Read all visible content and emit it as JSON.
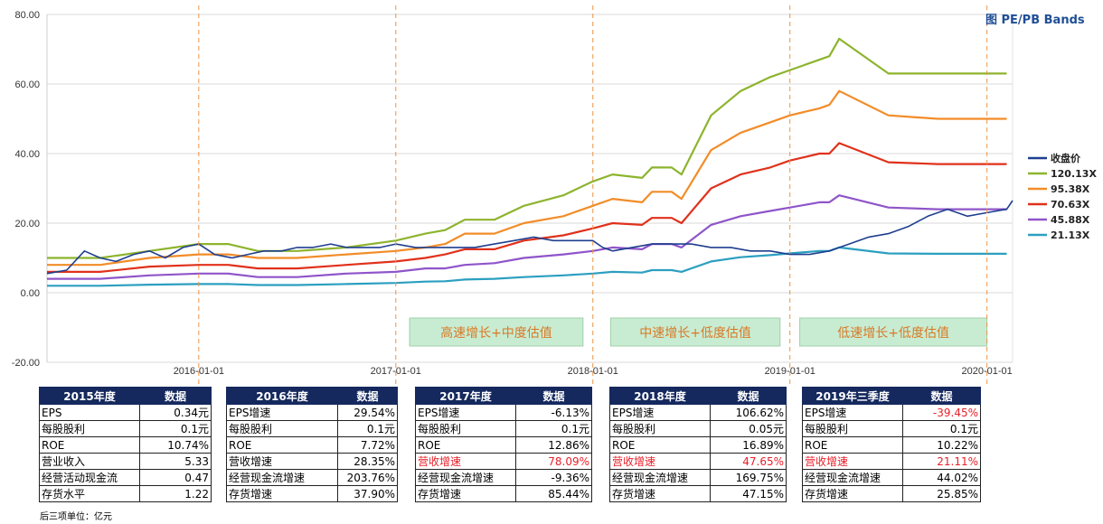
{
  "chart_data": {
    "type": "line",
    "title": "图 PE/PB Bands",
    "xlabel": "",
    "ylabel": "",
    "ylim": [
      -20,
      80
    ],
    "yticks": [
      "80.00",
      "60.00",
      "40.00",
      "20.00",
      "0.00",
      "-20.00"
    ],
    "yticks_values": [
      80,
      60,
      40,
      20,
      0,
      -20
    ],
    "x_range": [
      2015.23,
      2020.13
    ],
    "xticks": [
      "2016-01-01",
      "2017-01-01",
      "2018-01-01",
      "2019-01-01",
      "2020-01-01"
    ],
    "xticks_values": [
      2016.0,
      2017.0,
      2018.0,
      2019.0,
      2020.0
    ],
    "legend_position": "right",
    "series": [
      {
        "name": "收盘价",
        "color": "#1f3f8f",
        "x": [
          2015.23,
          2015.33,
          2015.42,
          2015.5,
          2015.58,
          2015.67,
          2015.75,
          2015.83,
          2015.92,
          2016.0,
          2016.08,
          2016.17,
          2016.25,
          2016.33,
          2016.42,
          2016.5,
          2016.58,
          2016.67,
          2016.75,
          2016.83,
          2016.92,
          2017.0,
          2017.1,
          2017.2,
          2017.3,
          2017.4,
          2017.5,
          2017.6,
          2017.7,
          2017.8,
          2017.9,
          2018.0,
          2018.05,
          2018.1,
          2018.2,
          2018.3,
          2018.4,
          2018.5,
          2018.6,
          2018.7,
          2018.8,
          2018.9,
          2019.0,
          2019.1,
          2019.2,
          2019.3,
          2019.4,
          2019.5,
          2019.6,
          2019.7,
          2019.8,
          2019.9,
          2020.0,
          2020.1,
          2020.13
        ],
        "values": [
          5.5,
          6.5,
          12,
          10,
          9,
          11,
          12,
          10,
          13,
          14,
          11,
          10,
          11,
          12,
          12,
          13,
          13,
          14,
          13,
          13,
          13,
          14,
          13,
          13,
          13,
          13,
          14,
          15,
          16,
          15,
          15,
          15,
          13,
          12,
          13,
          14,
          14,
          14,
          13,
          13,
          12,
          12,
          11,
          11,
          12,
          14,
          16,
          17,
          19,
          22,
          24,
          22,
          23,
          24,
          26.5
        ]
      },
      {
        "name": "120.13X",
        "color": "#8db42d",
        "x": [
          2015.23,
          2015.5,
          2015.75,
          2016.0,
          2016.15,
          2016.3,
          2016.5,
          2016.75,
          2017.0,
          2017.15,
          2017.25,
          2017.35,
          2017.5,
          2017.65,
          2017.85,
          2018.0,
          2018.1,
          2018.25,
          2018.3,
          2018.4,
          2018.45,
          2018.6,
          2018.75,
          2018.9,
          2019.0,
          2019.15,
          2019.2,
          2019.25,
          2019.5,
          2019.75,
          2020.1
        ],
        "values": [
          10,
          10,
          12,
          14,
          14,
          12,
          12,
          13,
          15,
          17,
          18,
          21,
          21,
          25,
          28,
          32,
          34,
          33,
          36,
          36,
          34,
          51,
          58,
          62,
          64,
          67,
          68,
          73,
          63,
          63,
          63
        ]
      },
      {
        "name": "95.38X",
        "color": "#f28c28",
        "x": [
          2015.23,
          2015.5,
          2015.75,
          2016.0,
          2016.15,
          2016.3,
          2016.5,
          2016.75,
          2017.0,
          2017.15,
          2017.25,
          2017.35,
          2017.5,
          2017.65,
          2017.85,
          2018.0,
          2018.1,
          2018.25,
          2018.3,
          2018.4,
          2018.45,
          2018.6,
          2018.75,
          2018.9,
          2019.0,
          2019.15,
          2019.2,
          2019.25,
          2019.5,
          2019.75,
          2020.1
        ],
        "values": [
          8,
          8,
          10,
          11,
          11,
          10,
          10,
          11,
          12,
          13,
          14,
          17,
          17,
          20,
          22,
          25,
          27,
          26,
          29,
          29,
          27,
          41,
          46,
          49,
          51,
          53,
          54,
          58,
          51,
          50,
          50
        ]
      },
      {
        "name": "70.63X",
        "color": "#e0311b",
        "x": [
          2015.23,
          2015.5,
          2015.75,
          2016.0,
          2016.15,
          2016.3,
          2016.5,
          2016.75,
          2017.0,
          2017.15,
          2017.25,
          2017.35,
          2017.5,
          2017.65,
          2017.85,
          2018.0,
          2018.1,
          2018.25,
          2018.3,
          2018.4,
          2018.45,
          2018.6,
          2018.75,
          2018.9,
          2019.0,
          2019.15,
          2019.2,
          2019.25,
          2019.5,
          2019.75,
          2020.1
        ],
        "values": [
          6,
          6,
          7.5,
          8,
          8,
          7,
          7,
          8,
          9,
          10,
          11,
          12.5,
          12.5,
          15,
          16.5,
          18.5,
          20,
          19.5,
          21.5,
          21.5,
          20,
          30,
          34,
          36,
          38,
          40,
          40,
          43,
          37.5,
          37,
          37
        ]
      },
      {
        "name": "45.88X",
        "color": "#8f55c9",
        "x": [
          2015.23,
          2015.5,
          2015.75,
          2016.0,
          2016.15,
          2016.3,
          2016.5,
          2016.75,
          2017.0,
          2017.15,
          2017.25,
          2017.35,
          2017.5,
          2017.65,
          2017.85,
          2018.0,
          2018.1,
          2018.25,
          2018.3,
          2018.4,
          2018.45,
          2018.6,
          2018.75,
          2018.9,
          2019.0,
          2019.15,
          2019.2,
          2019.25,
          2019.5,
          2019.75,
          2020.1
        ],
        "values": [
          4,
          4,
          5,
          5.5,
          5.5,
          4.5,
          4.5,
          5.5,
          6,
          7,
          7,
          8,
          8.5,
          10,
          11,
          12,
          13,
          12.5,
          14,
          14,
          13,
          19.5,
          22,
          23.5,
          24.5,
          26,
          26,
          28,
          24.5,
          24,
          24
        ]
      },
      {
        "name": "21.13X",
        "color": "#2b9fc0",
        "x": [
          2015.23,
          2015.5,
          2015.75,
          2016.0,
          2016.15,
          2016.3,
          2016.5,
          2016.75,
          2017.0,
          2017.15,
          2017.25,
          2017.35,
          2017.5,
          2017.65,
          2017.85,
          2018.0,
          2018.1,
          2018.25,
          2018.3,
          2018.4,
          2018.45,
          2018.6,
          2018.75,
          2018.9,
          2019.0,
          2019.15,
          2019.2,
          2019.25,
          2019.5,
          2019.75,
          2020.1
        ],
        "values": [
          2,
          2,
          2.3,
          2.5,
          2.5,
          2.2,
          2.2,
          2.5,
          2.8,
          3.2,
          3.3,
          3.8,
          4,
          4.5,
          5,
          5.5,
          6,
          5.8,
          6.5,
          6.5,
          6,
          9,
          10.2,
          10.8,
          11.3,
          12,
          12,
          13,
          11.3,
          11.2,
          11.2
        ]
      }
    ],
    "phase_dividers": [
      2016.0,
      2017.0,
      2018.0,
      2019.0,
      2020.0
    ],
    "phase_labels": [
      "高速增长+中度估值",
      "中速增长+低度估值",
      "低速增长+低度估值"
    ]
  },
  "tables": [
    {
      "header": [
        "2015年度",
        "数据"
      ],
      "rows": [
        [
          "EPS",
          "0.34元"
        ],
        [
          "每股股利",
          "0.1元"
        ],
        [
          "ROE",
          "10.74%"
        ],
        [
          "营业收入",
          "5.33"
        ],
        [
          "经营活动现金流",
          "0.47"
        ],
        [
          "存货水平",
          "1.22"
        ]
      ]
    },
    {
      "header": [
        "2016年度",
        "数据"
      ],
      "rows": [
        [
          "EPS增速",
          "29.54%"
        ],
        [
          "每股股利",
          "0.1元"
        ],
        [
          "ROE",
          "7.72%"
        ],
        [
          "营收增速",
          "28.35%"
        ],
        [
          "经营现金流增速",
          "203.76%"
        ],
        [
          "存货增速",
          "37.90%"
        ]
      ]
    },
    {
      "header": [
        "2017年度",
        "数据"
      ],
      "rows": [
        [
          "EPS增速",
          "-6.13%"
        ],
        [
          "每股股利",
          "0.1元"
        ],
        [
          "ROE",
          "12.86%"
        ],
        [
          "营收增速",
          "78.09%"
        ],
        [
          "经营现金流增速",
          "-9.36%"
        ],
        [
          "存货增速",
          "85.44%"
        ]
      ]
    },
    {
      "header": [
        "2018年度",
        "数据"
      ],
      "rows": [
        [
          "EPS增速",
          "106.62%"
        ],
        [
          "每股股利",
          "0.05元"
        ],
        [
          "ROE",
          "16.89%"
        ],
        [
          "营收增速",
          "47.65%"
        ],
        [
          "经营现金流增速",
          "169.75%"
        ],
        [
          "存货增速",
          "47.15%"
        ]
      ]
    },
    {
      "header": [
        "2019年三季度",
        "数据"
      ],
      "rows": [
        [
          "EPS增速",
          "-39.45%"
        ],
        [
          "每股股利",
          "0.1元"
        ],
        [
          "ROE",
          "10.22%"
        ],
        [
          "营收增速",
          "21.11%"
        ],
        [
          "经营现金流增速",
          "44.02%"
        ],
        [
          "存货增速",
          "25.85%"
        ]
      ]
    }
  ],
  "highlight_color": "#e8202a",
  "footnote": "后三项单位：亿元"
}
